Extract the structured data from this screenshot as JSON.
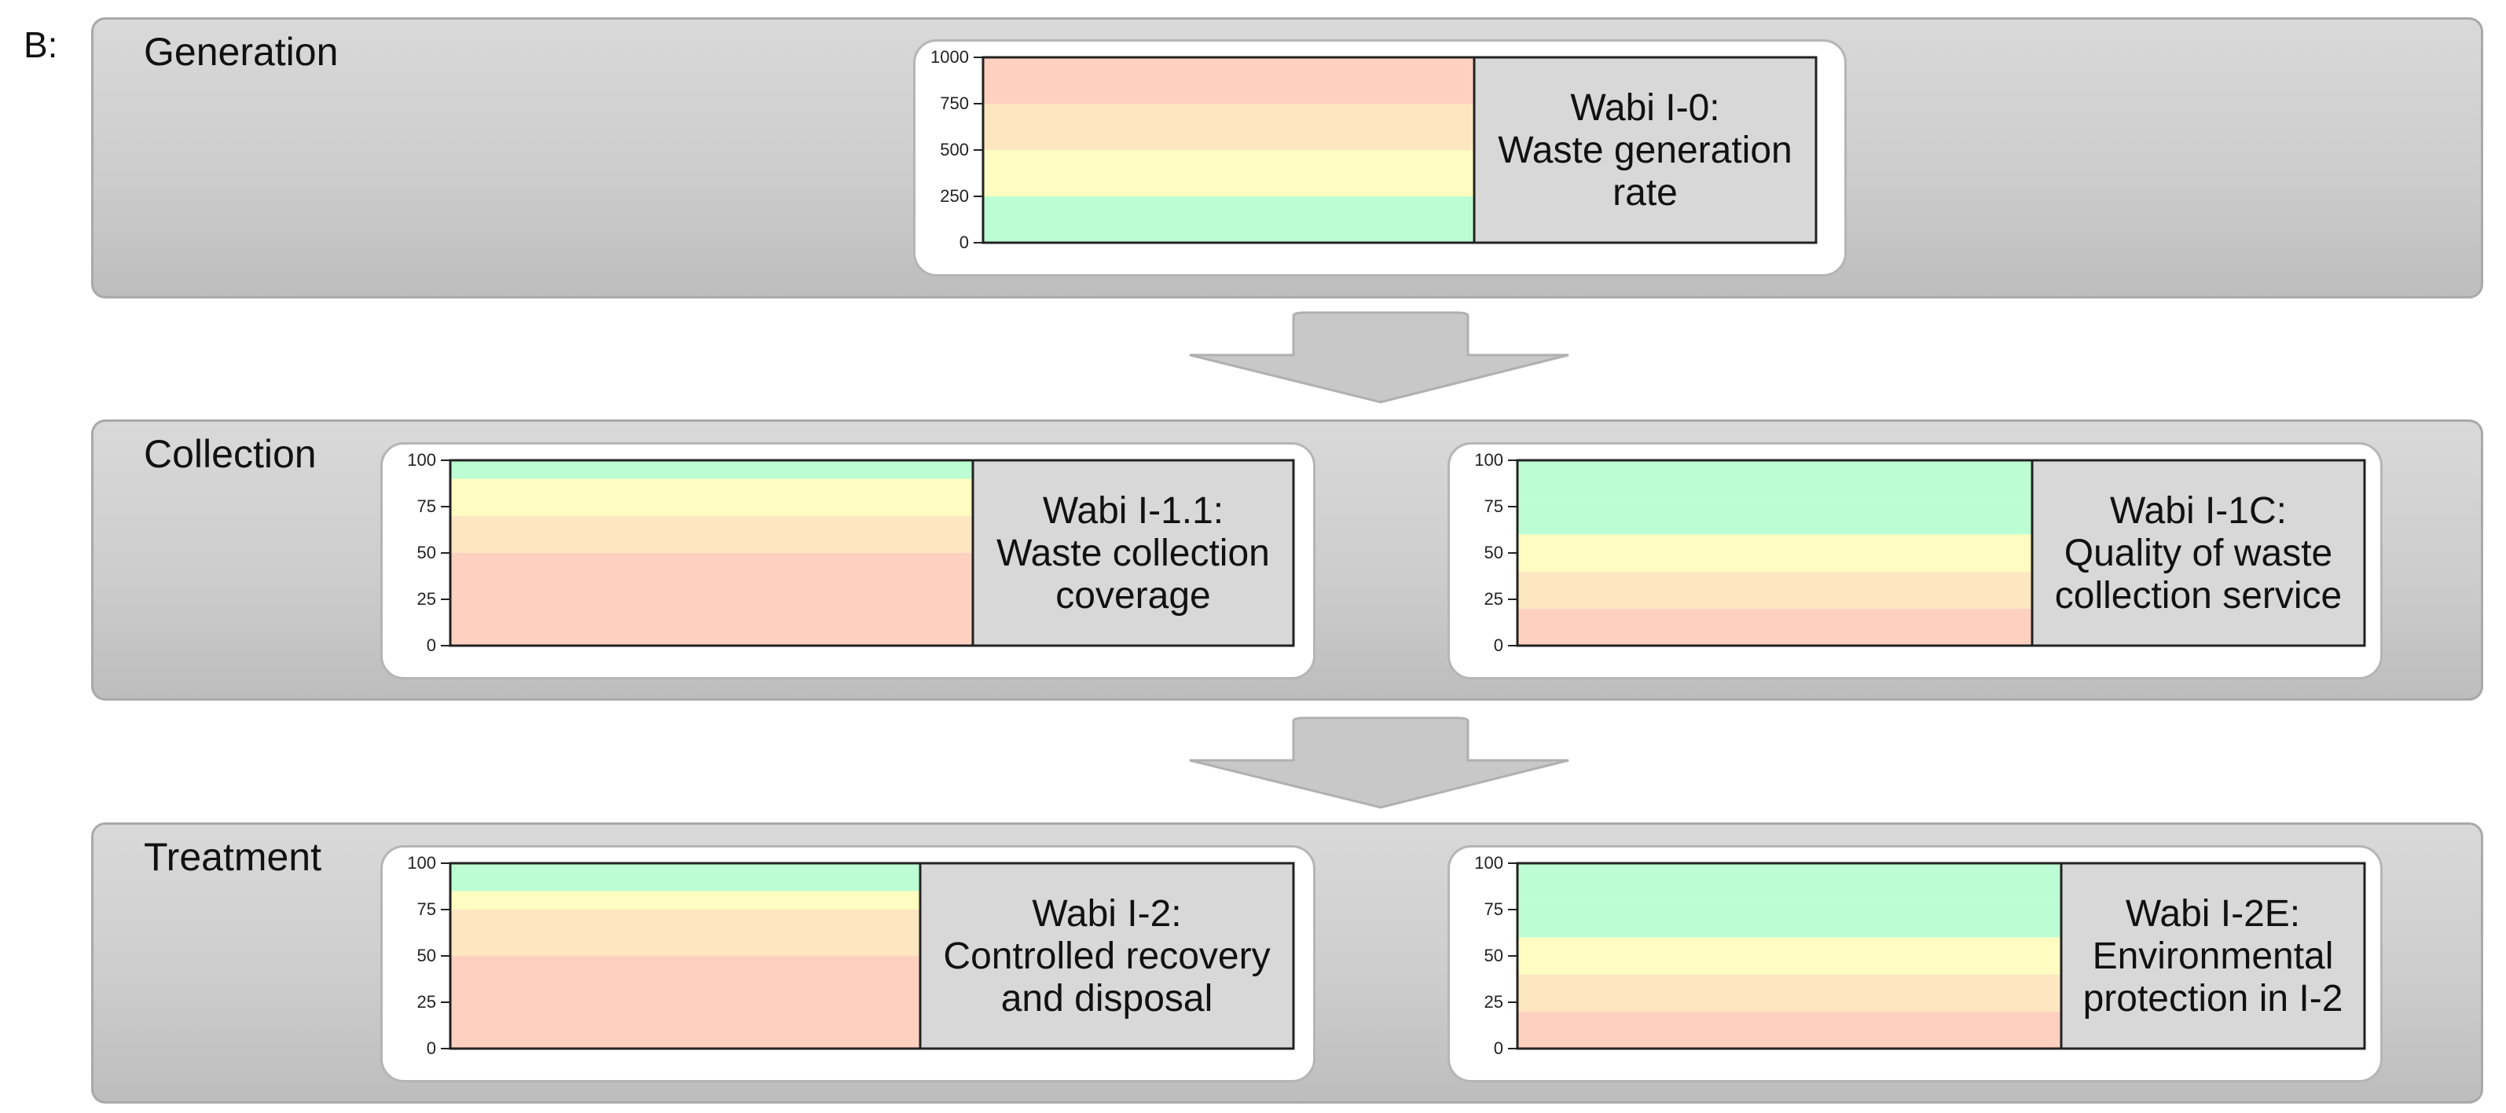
{
  "figure_label": "B:",
  "colors": {
    "red": "#fdd0c0",
    "orange": "#fde7c1",
    "yellow": "#fefcc0",
    "green": "#bdfdd3",
    "stage_border": "#a9a9a9",
    "arrow_fill": "#c8c8c8"
  },
  "stages": [
    {
      "title": "Generation",
      "indicators": [
        {
          "name_lines": [
            "Wabi I-0:",
            "Waste generation",
            "rate"
          ],
          "ticks": [
            "0",
            "250",
            "500",
            "750",
            "1000"
          ],
          "ylim": [
            0,
            1000
          ],
          "bands": [
            {
              "from": 0,
              "to": 250,
              "color": "green"
            },
            {
              "from": 250,
              "to": 500,
              "color": "yellow"
            },
            {
              "from": 500,
              "to": 750,
              "color": "orange"
            },
            {
              "from": 750,
              "to": 1000,
              "color": "red"
            }
          ]
        }
      ]
    },
    {
      "title": "Collection",
      "indicators": [
        {
          "name_lines": [
            "Wabi I-1.1:",
            "Waste collection",
            "coverage"
          ],
          "ticks": [
            "0",
            "25",
            "50",
            "75",
            "100"
          ],
          "ylim": [
            0,
            100
          ],
          "bands": [
            {
              "from": 0,
              "to": 50,
              "color": "red"
            },
            {
              "from": 50,
              "to": 70,
              "color": "orange"
            },
            {
              "from": 70,
              "to": 90,
              "color": "yellow"
            },
            {
              "from": 90,
              "to": 100,
              "color": "green"
            }
          ]
        },
        {
          "name_lines": [
            "Wabi I-1C:",
            "Quality of waste",
            "collection service"
          ],
          "ticks": [
            "0",
            "25",
            "50",
            "75",
            "100"
          ],
          "ylim": [
            0,
            100
          ],
          "bands": [
            {
              "from": 0,
              "to": 20,
              "color": "red"
            },
            {
              "from": 20,
              "to": 40,
              "color": "orange"
            },
            {
              "from": 40,
              "to": 60,
              "color": "yellow"
            },
            {
              "from": 60,
              "to": 80,
              "color": "green"
            },
            {
              "from": 80,
              "to": 100,
              "color": "green"
            }
          ]
        }
      ]
    },
    {
      "title": "Treatment",
      "indicators": [
        {
          "name_lines": [
            "Wabi I-2:",
            "Controlled recovery",
            "and disposal"
          ],
          "ticks": [
            "0",
            "25",
            "50",
            "75",
            "100"
          ],
          "ylim": [
            0,
            100
          ],
          "bands": [
            {
              "from": 0,
              "to": 50,
              "color": "red"
            },
            {
              "from": 50,
              "to": 75,
              "color": "orange"
            },
            {
              "from": 75,
              "to": 85,
              "color": "yellow"
            },
            {
              "from": 85,
              "to": 100,
              "color": "green"
            }
          ]
        },
        {
          "name_lines": [
            "Wabi I-2E:",
            "Environmental",
            "protection in I-2"
          ],
          "ticks": [
            "0",
            "25",
            "50",
            "75",
            "100"
          ],
          "ylim": [
            0,
            100
          ],
          "bands": [
            {
              "from": 0,
              "to": 20,
              "color": "red"
            },
            {
              "from": 20,
              "to": 40,
              "color": "orange"
            },
            {
              "from": 40,
              "to": 60,
              "color": "yellow"
            },
            {
              "from": 60,
              "to": 80,
              "color": "green"
            },
            {
              "from": 80,
              "to": 100,
              "color": "green"
            }
          ]
        }
      ]
    }
  ]
}
